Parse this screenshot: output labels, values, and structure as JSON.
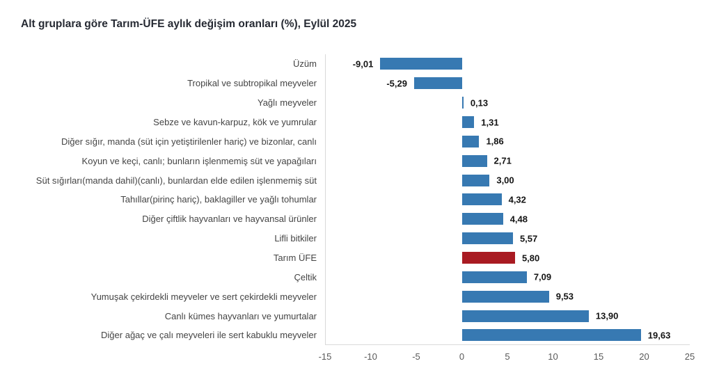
{
  "title": "Alt gruplara göre Tarım-ÜFE aylık değişim oranları (%), Eylül 2025",
  "chart_data": {
    "type": "bar",
    "orientation": "horizontal",
    "title": "Alt gruplara göre Tarım-ÜFE aylık değişim oranları (%), Eylül 2025",
    "categories": [
      "Üzüm",
      "Tropikal ve subtropikal meyveler",
      "Yağlı meyveler",
      "Sebze ve kavun-karpuz, kök ve yumrular",
      "Diğer sığır, manda (süt için yetiştirilenler hariç) ve bizonlar, canlı",
      "Koyun ve keçi, canlı; bunların işlenmemiş süt ve yapağıları",
      "Süt sığırları(manda dahil)(canlı), bunlardan elde edilen işlenmemiş süt",
      "Tahıllar(pirinç hariç), baklagiller ve yağlı tohumlar",
      "Diğer çiftlik hayvanları ve hayvansal ürünler",
      "Lifli bitkiler",
      "Tarım ÜFE",
      "Çeltik",
      "Yumuşak çekirdekli meyveler ve sert çekirdekli meyveler",
      "Canlı kümes hayvanları ve yumurtalar",
      "Diğer ağaç ve çalı meyveleri ile sert kabuklu meyveler"
    ],
    "values": [
      -9.01,
      -5.29,
      0.13,
      1.31,
      1.86,
      2.71,
      3.0,
      4.32,
      4.48,
      5.57,
      5.8,
      7.09,
      9.53,
      13.9,
      19.63
    ],
    "value_labels": [
      "-9,01",
      "-5,29",
      "0,13",
      "1,31",
      "1,86",
      "2,71",
      "3,00",
      "4,32",
      "4,48",
      "5,57",
      "5,80",
      "7,09",
      "9,53",
      "13,90",
      "19,63"
    ],
    "highlight_category": "Tarım ÜFE",
    "highlight_index": 10,
    "xlim": [
      -15,
      25
    ],
    "x_ticks": [
      -15,
      -10,
      -5,
      0,
      5,
      10,
      15,
      20,
      25
    ],
    "x_tick_labels": [
      "-15",
      "-10",
      "-5",
      "0",
      "5",
      "10",
      "15",
      "20",
      "25"
    ],
    "bar_color": "#3779b2",
    "highlight_color": "#a91b22",
    "axis_line_color": "#d9d9d9",
    "grid": false,
    "legend": false
  }
}
